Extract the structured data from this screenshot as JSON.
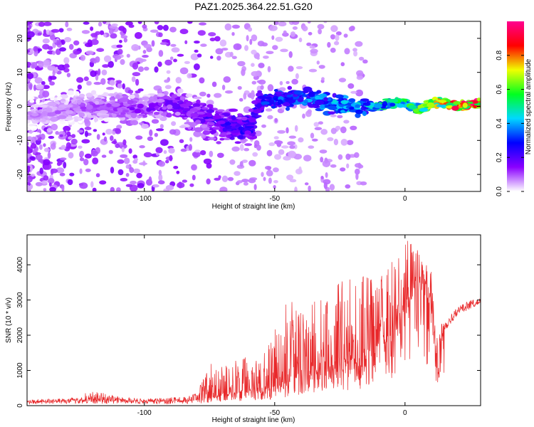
{
  "title": "PAZ1.2025.364.22.51.G20",
  "chart_data": [
    {
      "type": "heatmap",
      "name": "spectrogram",
      "xlabel": "Height of straight line (km)",
      "ylabel": "Frequency (Hz)",
      "xlim": [
        -145,
        29
      ],
      "ylim": [
        -25,
        25
      ],
      "xticks": [
        "-100",
        "-50",
        "0"
      ],
      "xtick_values": [
        -100,
        -50,
        0
      ],
      "yticks": [
        "-20",
        "-10",
        "0",
        "10",
        "20"
      ],
      "ytick_values": [
        -20,
        -10,
        0,
        10,
        20
      ],
      "colorbar": {
        "label": "Normalized spectral amplitude",
        "range": [
          0,
          1
        ],
        "ticks": [
          "0.0",
          "0.2",
          "0.4",
          "0.6",
          "0.8"
        ],
        "tick_values": [
          0.0,
          0.2,
          0.4,
          0.6,
          0.8
        ],
        "colors": [
          "#ffffff",
          "#8a00ff",
          "#0000ff",
          "#00d8ff",
          "#00ff20",
          "#f0ff00",
          "#ff0000",
          "#ff0090"
        ]
      },
      "ridge": {
        "x": [
          -145,
          -120,
          -100,
          -90,
          -80,
          -70,
          -60,
          -55,
          -50,
          -40,
          -30,
          -20,
          -10,
          -5,
          0,
          5,
          10,
          15,
          20,
          29
        ],
        "freq": [
          -3,
          0,
          -1,
          1,
          -2,
          -5,
          -7,
          1,
          2,
          3,
          1,
          0,
          0,
          1,
          1,
          -1,
          1,
          1,
          0,
          1
        ],
        "amplitude": [
          0.08,
          0.12,
          0.16,
          0.18,
          0.2,
          0.24,
          0.28,
          0.32,
          0.35,
          0.38,
          0.42,
          0.45,
          0.5,
          0.56,
          0.6,
          0.62,
          0.7,
          0.8,
          0.95,
          0.95
        ]
      }
    },
    {
      "type": "line",
      "name": "snr",
      "xlabel": "Height of straight line (km)",
      "ylabel": "SNR (10 * v/v)",
      "xlim": [
        -145,
        29
      ],
      "ylim": [
        0,
        4850
      ],
      "xticks": [
        "-100",
        "-50",
        "0"
      ],
      "xtick_values": [
        -100,
        -50,
        0
      ],
      "yticks": [
        "0",
        "1000",
        "2000",
        "3000",
        "4000"
      ],
      "ytick_values": [
        0,
        1000,
        2000,
        3000,
        4000
      ],
      "color": "#e8282a",
      "envelope": {
        "x": [
          -145,
          -130,
          -120,
          -110,
          -100,
          -95,
          -85,
          -80,
          -75,
          -70,
          -65,
          -60,
          -55,
          -50,
          -45,
          -40,
          -35,
          -30,
          -25,
          -20,
          -15,
          -10,
          -5,
          0,
          5,
          10,
          12,
          15,
          20,
          25,
          29
        ],
        "base": [
          100,
          120,
          150,
          120,
          110,
          110,
          130,
          150,
          200,
          250,
          300,
          350,
          400,
          450,
          600,
          800,
          900,
          1000,
          1100,
          1100,
          1200,
          1500,
          1800,
          2500,
          3200,
          2800,
          1600,
          1900,
          2400,
          2600,
          2800
        ],
        "spike": [
          180,
          200,
          450,
          250,
          200,
          220,
          250,
          350,
          1200,
          1400,
          1300,
          1400,
          1500,
          2200,
          3200,
          2800,
          3000,
          3000,
          3600,
          3700,
          3800,
          3600,
          4200,
          4800,
          4400,
          4000,
          2200,
          2500,
          2900,
          3100,
          3100
        ]
      }
    }
  ]
}
